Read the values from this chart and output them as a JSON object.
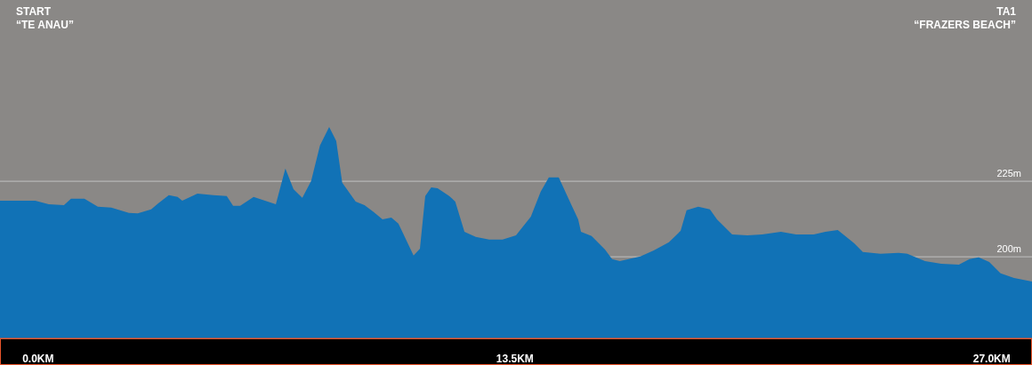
{
  "chart_data": {
    "type": "area",
    "x": [
      -1.08,
      -0.08,
      0.3,
      0.73,
      0.93,
      1.31,
      1.69,
      2.07,
      2.57,
      2.82,
      3.2,
      3.4,
      3.7,
      3.95,
      4.08,
      4.51,
      4.96,
      5.34,
      5.52,
      5.72,
      6.1,
      6.73,
      7.0,
      7.23,
      7.48,
      7.73,
      7.98,
      8.24,
      8.44,
      8.61,
      8.99,
      9.24,
      9.5,
      9.75,
      10.0,
      10.2,
      10.38,
      10.63,
      10.81,
      10.96,
      11.13,
      11.31,
      11.64,
      11.81,
      12.07,
      12.39,
      12.77,
      13.15,
      13.53,
      13.95,
      14.23,
      14.46,
      14.74,
      15.09,
      15.29,
      15.37,
      15.67,
      16.05,
      16.25,
      16.47,
      17.05,
      17.43,
      17.86,
      18.19,
      18.36,
      18.69,
      19.02,
      19.22,
      19.65,
      20.08,
      20.5,
      21.03,
      21.46,
      21.96,
      22.29,
      22.64,
      23.1,
      23.35,
      23.85,
      24.36,
      24.61,
      25.11,
      25.57,
      26.07,
      26.37,
      26.63,
      26.93,
      27.25,
      27.63,
      28.14
    ],
    "values": [
      218.6,
      218.6,
      217.4,
      217.1,
      219.2,
      219.2,
      216.6,
      216.3,
      214.5,
      214.4,
      215.7,
      217.7,
      220.4,
      219.8,
      218.6,
      220.9,
      220.4,
      220.1,
      216.9,
      216.9,
      219.8,
      217.4,
      229.2,
      222.4,
      219.5,
      225.1,
      236.9,
      243.0,
      238.3,
      224.5,
      218.3,
      217.1,
      214.8,
      212.4,
      213.0,
      211.0,
      206.6,
      200.4,
      202.7,
      220.1,
      223.0,
      222.7,
      220.1,
      218.3,
      208.3,
      206.6,
      205.7,
      205.7,
      207.1,
      213.3,
      221.6,
      226.3,
      226.3,
      217.4,
      212.4,
      208.3,
      206.9,
      202.4,
      199.2,
      198.6,
      200.1,
      202.1,
      204.8,
      208.6,
      215.4,
      216.6,
      215.7,
      212.4,
      207.4,
      207.1,
      207.4,
      208.3,
      207.4,
      207.4,
      208.3,
      208.9,
      204.5,
      201.6,
      201.0,
      201.3,
      201.0,
      198.6,
      197.7,
      197.4,
      199.2,
      199.8,
      198.3,
      194.5,
      193.0,
      191.8
    ],
    "color": "#1172b6",
    "xlim": [
      -1.08,
      28.14
    ],
    "xticks": [
      {
        "value": 0,
        "label": "0.0KM"
      },
      {
        "value": 13.5,
        "label": "13.5KM"
      },
      {
        "value": 27,
        "label": "27.0KM"
      }
    ],
    "ylim": [
      173,
      285
    ],
    "yticks": [
      {
        "value": 200,
        "label": "200m"
      },
      {
        "value": 225,
        "label": "225m"
      }
    ],
    "grid": "y",
    "annotations": [
      "START\n“TE ANAU”",
      "TA1\n“FRAZERS BEACH”"
    ]
  }
}
